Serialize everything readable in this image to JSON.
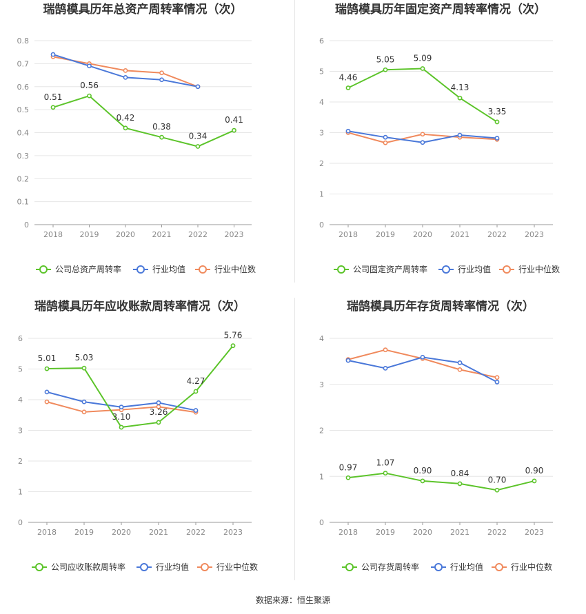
{
  "footer": {
    "source": "数据来源：恒生聚源"
  },
  "colors": {
    "company": "#5cc42a",
    "avg": "#4a78d9",
    "median": "#f08a5d",
    "grid": "#e6e6e6",
    "axis": "#999999"
  },
  "chart_data": [
    {
      "type": "line",
      "title": "瑞鹄模具历年总资产周转率情况（次）",
      "categories": [
        "2018",
        "2019",
        "2020",
        "2021",
        "2022",
        "2023"
      ],
      "ylim": [
        0,
        0.8
      ],
      "yticks": [
        "0",
        "0.1",
        "0.2",
        "0.3",
        "0.4",
        "0.5",
        "0.6",
        "0.7",
        "0.8"
      ],
      "legend_position": "bottom",
      "series": [
        {
          "name": "公司总资产周转率",
          "role": "company",
          "values": [
            0.51,
            0.56,
            0.42,
            0.38,
            0.34,
            0.41
          ],
          "labels": [
            "0.51",
            "0.56",
            "0.42",
            "0.38",
            "0.34",
            "0.41"
          ]
        },
        {
          "name": "行业均值",
          "role": "avg",
          "values": [
            0.74,
            0.69,
            0.64,
            0.63,
            0.6,
            null
          ]
        },
        {
          "name": "行业中位数",
          "role": "median",
          "values": [
            0.73,
            0.7,
            0.67,
            0.66,
            0.6,
            null
          ]
        }
      ]
    },
    {
      "type": "line",
      "title": "瑞鹄模具历年固定资产周转率情况（次）",
      "categories": [
        "2018",
        "2019",
        "2020",
        "2021",
        "2022",
        "2023"
      ],
      "ylim": [
        0,
        6
      ],
      "yticks": [
        "0",
        "1",
        "2",
        "3",
        "4",
        "5",
        "6"
      ],
      "legend_position": "bottom",
      "series": [
        {
          "name": "公司固定资产周转率",
          "role": "company",
          "values": [
            4.46,
            5.05,
            5.09,
            4.13,
            3.35,
            null
          ],
          "labels": [
            "4.46",
            "5.05",
            "5.09",
            "4.13",
            "3.35",
            ""
          ]
        },
        {
          "name": "行业均值",
          "role": "avg",
          "values": [
            3.05,
            2.85,
            2.68,
            2.92,
            2.82,
            null
          ]
        },
        {
          "name": "行业中位数",
          "role": "median",
          "values": [
            3.0,
            2.67,
            2.95,
            2.85,
            2.78,
            null
          ]
        }
      ]
    },
    {
      "type": "line",
      "title": "瑞鹄模具历年应收账款周转率情况（次）",
      "categories": [
        "2018",
        "2019",
        "2020",
        "2021",
        "2022",
        "2023"
      ],
      "ylim": [
        0,
        6
      ],
      "yticks": [
        "0",
        "1",
        "2",
        "3",
        "4",
        "5",
        "6"
      ],
      "legend_position": "bottom",
      "series": [
        {
          "name": "公司应收账款周转率",
          "role": "company",
          "values": [
            5.01,
            5.03,
            3.1,
            3.26,
            4.27,
            5.76
          ],
          "labels": [
            "5.01",
            "5.03",
            "3.10",
            "3.26",
            "4.27",
            "5.76"
          ]
        },
        {
          "name": "行业均值",
          "role": "avg",
          "values": [
            4.25,
            3.93,
            3.76,
            3.9,
            3.65,
            null
          ]
        },
        {
          "name": "行业中位数",
          "role": "median",
          "values": [
            3.93,
            3.6,
            3.67,
            3.77,
            3.59,
            null
          ]
        }
      ]
    },
    {
      "type": "line",
      "title": "瑞鹄模具历年存货周转率情况（次）",
      "categories": [
        "2018",
        "2019",
        "2020",
        "2021",
        "2022",
        "2023"
      ],
      "ylim": [
        0,
        4
      ],
      "yticks": [
        "0",
        "1",
        "2",
        "3",
        "4"
      ],
      "legend_position": "bottom",
      "series": [
        {
          "name": "公司存货周转率",
          "role": "company",
          "values": [
            0.97,
            1.07,
            0.9,
            0.84,
            0.7,
            0.9
          ],
          "labels": [
            "0.97",
            "1.07",
            "0.90",
            "0.84",
            "0.70",
            "0.90"
          ]
        },
        {
          "name": "行业均值",
          "role": "avg",
          "values": [
            3.52,
            3.35,
            3.59,
            3.47,
            3.05,
            null
          ]
        },
        {
          "name": "行业中位数",
          "role": "median",
          "values": [
            3.54,
            3.75,
            3.56,
            3.32,
            3.15,
            null
          ]
        }
      ]
    }
  ]
}
